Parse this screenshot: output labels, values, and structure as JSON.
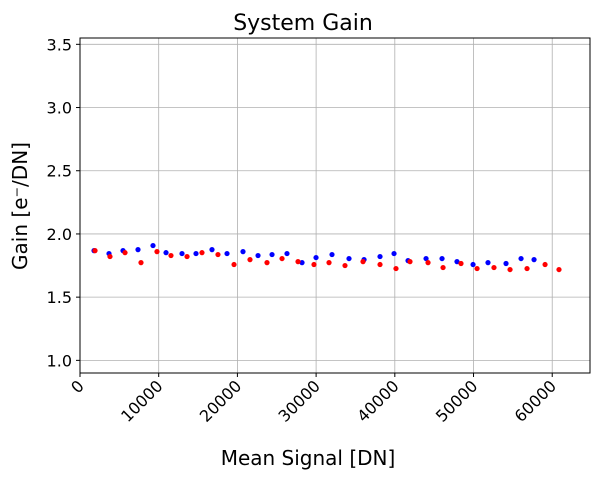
{
  "chart_data": {
    "type": "scatter",
    "title": "System Gain",
    "xlabel": "Mean Signal [DN]",
    "ylabel": "Gain [e⁻/DN]",
    "xlim": [
      0,
      64800
    ],
    "ylim": [
      0.9,
      3.55
    ],
    "grid": true,
    "xticks": [
      0,
      10000,
      20000,
      30000,
      40000,
      50000,
      60000
    ],
    "xtick_labels": [
      "0",
      "10000",
      "20000",
      "30000",
      "40000",
      "50000",
      "60000"
    ],
    "yticks": [
      1.0,
      1.5,
      2.0,
      2.5,
      3.0,
      3.5
    ],
    "ytick_labels": [
      "1.0",
      "1.5",
      "2.0",
      "2.5",
      "3.0",
      "3.5"
    ],
    "series": [
      {
        "name": "blue",
        "color": "#0000ff",
        "x": [
          1780,
          3685,
          5465,
          7370,
          9275,
          10930,
          12960,
          14740,
          16770,
          18680,
          20710,
          22620,
          24400,
          26300,
          28210,
          29990,
          32020,
          34180,
          36090,
          38120,
          39900,
          41680,
          43970,
          46000,
          47900,
          49940,
          51840,
          54130,
          56040,
          57690
        ],
        "y": [
          1.868,
          1.845,
          1.868,
          1.876,
          1.908,
          1.852,
          1.845,
          1.845,
          1.876,
          1.845,
          1.86,
          1.829,
          1.837,
          1.845,
          1.773,
          1.813,
          1.837,
          1.805,
          1.797,
          1.821,
          1.845,
          1.789,
          1.805,
          1.805,
          1.781,
          1.758,
          1.773,
          1.766,
          1.805,
          1.797
        ]
      },
      {
        "name": "red",
        "color": "#ff0000",
        "x": [
          1910,
          3810,
          5720,
          7750,
          9780,
          11560,
          13600,
          15500,
          17530,
          19570,
          21600,
          23760,
          25670,
          27700,
          29730,
          31640,
          33670,
          35960,
          38120,
          40150,
          41930,
          44220,
          46130,
          48410,
          50450,
          52600,
          54640,
          56800,
          59090,
          60860
        ],
        "y": [
          1.868,
          1.821,
          1.852,
          1.773,
          1.86,
          1.829,
          1.821,
          1.852,
          1.837,
          1.758,
          1.797,
          1.773,
          1.805,
          1.781,
          1.758,
          1.773,
          1.75,
          1.781,
          1.758,
          1.726,
          1.781,
          1.773,
          1.734,
          1.766,
          1.726,
          1.734,
          1.718,
          1.726,
          1.758,
          1.718
        ]
      }
    ]
  }
}
